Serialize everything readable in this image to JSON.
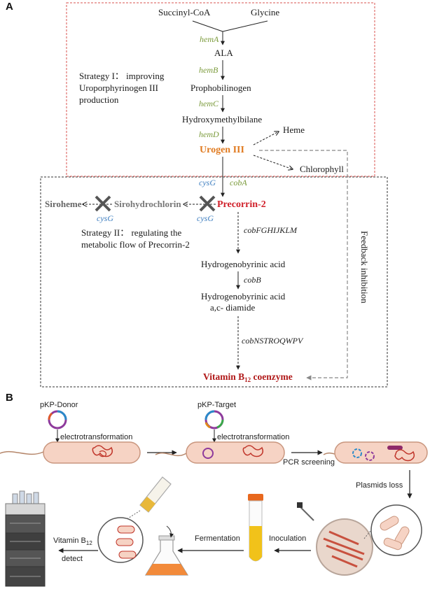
{
  "panel_a": {
    "label": "A",
    "substrate_1": "Succinyl-CoA",
    "substrate_2": "Glycine",
    "gene_hemA": "hemA",
    "ala": "ALA",
    "gene_hemB": "hemB",
    "pbg": "Prophobilinogen",
    "gene_hemC": "hemC",
    "hmb": "Hydroxymethylbilane",
    "gene_hemD": "hemD",
    "heme": "Heme",
    "urogen": "Urogen III",
    "chlorophyll": "Chlorophyll",
    "strategy1_line1": "Strategy I： improving",
    "strategy1_line2": "Uroporphyrinogen III",
    "strategy1_line3": "production",
    "gene_cysG_top": "cysG",
    "gene_cobA": "cobA",
    "siroheme": "Siroheme",
    "sirohydrochlorin": "Sirohydrochlorin",
    "precorrin": "Precorrin-2",
    "gene_cysG_left": "cysG",
    "gene_cysG_right": "cysG",
    "strategy2_line1": "Strategy II： regulating the",
    "strategy2_line2": "metabolic flow of Precorrin-2",
    "gene_cobFG": "cobFGHIJKLM",
    "hba": "Hydrogenobyrinic acid",
    "gene_cobB": "cobB",
    "hbad_line1": "Hydrogenobyrinic acid",
    "hbad_line2": "a,c- diamide",
    "gene_cobNS": "cobNSTROQWPV",
    "vitamin_main": "Vitamin B",
    "vitamin_sub": "12",
    "vitamin_tail": " coenzyme",
    "feedback": "Feedback inhibition"
  },
  "panel_b": {
    "label": "B",
    "donor": "pKP-Donor",
    "target": "pKP-Target",
    "electro_1": "electrotransformation",
    "electro_2": "electrotransformation",
    "pcr": "PCR screening",
    "plasmid_loss": "Plasmids loss",
    "inoculation": "Inoculation",
    "fermentation": "Fermentation",
    "detect_line1": "Vitamin B",
    "detect_sub": "12",
    "detect_line2": "detect"
  },
  "colors": {
    "urogen": "#e07a1f",
    "precorrin": "#d0202a",
    "vitamin": "#b01818",
    "gene_green": "#7a9a3a",
    "gene_blue": "#3f7fc0",
    "box_red": "#d9534f"
  }
}
